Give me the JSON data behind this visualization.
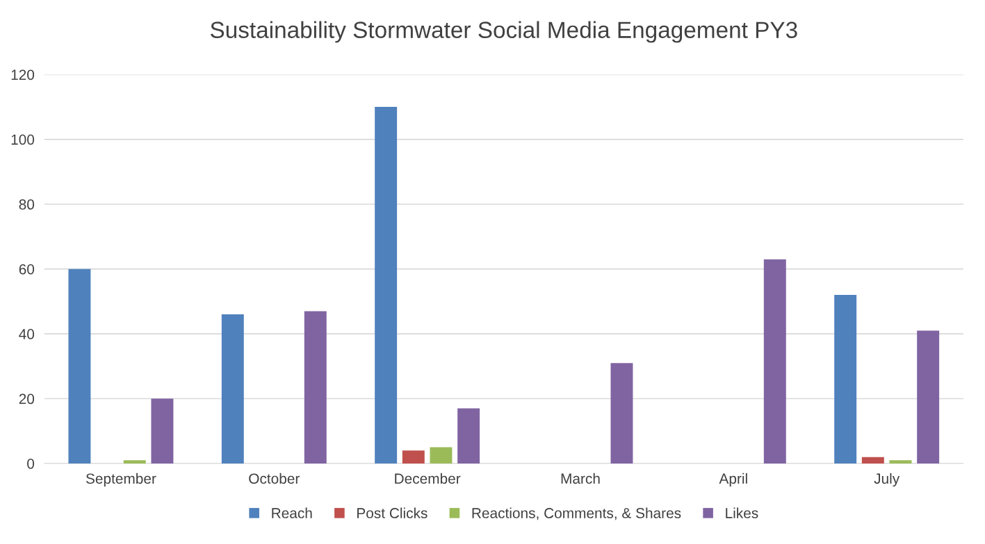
{
  "chart_data": {
    "type": "bar",
    "title": "Sustainability Stormwater Social Media Engagement PY3",
    "categories": [
      "September",
      "October",
      "December",
      "March",
      "April",
      "July"
    ],
    "series": [
      {
        "name": "Reach",
        "color": "#4f81bd",
        "values": [
          60,
          46,
          110,
          0,
          0,
          52
        ]
      },
      {
        "name": "Post Clicks",
        "color": "#c0504d",
        "values": [
          0,
          0,
          4,
          0,
          0,
          2
        ]
      },
      {
        "name": "Reactions, Comments, & Shares",
        "color": "#9bbb59",
        "values": [
          1,
          0,
          5,
          0,
          0,
          1
        ]
      },
      {
        "name": "Likes",
        "color": "#8064a2",
        "values": [
          20,
          47,
          17,
          31,
          63,
          41
        ]
      }
    ],
    "ylim": [
      0,
      120
    ],
    "yticks": [
      0,
      20,
      40,
      60,
      80,
      100,
      120
    ],
    "grid": "y",
    "legend": "bottom"
  }
}
